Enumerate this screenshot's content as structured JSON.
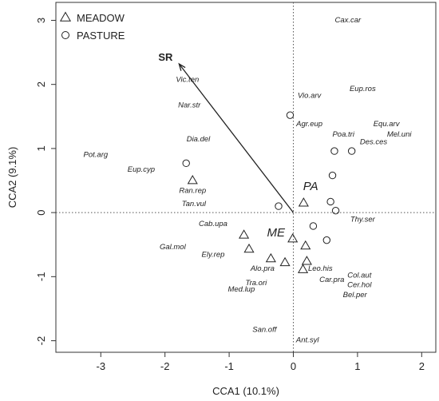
{
  "chart_data": {
    "type": "scatter",
    "title": "",
    "xlabel": "CCA1 (10.1%)",
    "ylabel": "CCA2 (9.1%)",
    "xlim": [
      -3.7,
      2.22
    ],
    "ylim": [
      -2.18,
      3.28
    ],
    "x_ticks": [
      -3,
      -2,
      -1,
      0,
      1,
      2
    ],
    "y_ticks": [
      -2,
      -1,
      0,
      1,
      2,
      3
    ],
    "legend": {
      "position": "top-left",
      "entries": [
        {
          "label": "MEADOW",
          "marker": "triangle"
        },
        {
          "label": "PASTURE",
          "marker": "circle"
        }
      ]
    },
    "series": [
      {
        "name": "MEADOW",
        "marker": "triangle",
        "points": [
          {
            "x": -1.57,
            "y": 0.5
          },
          {
            "x": -0.77,
            "y": -0.35
          },
          {
            "x": -0.69,
            "y": -0.57
          },
          {
            "x": -0.35,
            "y": -0.72
          },
          {
            "x": -0.13,
            "y": -0.78
          },
          {
            "x": -0.01,
            "y": -0.41
          },
          {
            "x": 0.19,
            "y": -0.52
          },
          {
            "x": 0.21,
            "y": -0.76
          },
          {
            "x": 0.15,
            "y": -0.89
          },
          {
            "x": 0.16,
            "y": 0.15
          }
        ]
      },
      {
        "name": "PASTURE",
        "marker": "circle",
        "points": [
          {
            "x": -1.67,
            "y": 0.77
          },
          {
            "x": -0.23,
            "y": 0.1
          },
          {
            "x": -0.05,
            "y": 1.52
          },
          {
            "x": 0.31,
            "y": -0.21
          },
          {
            "x": 0.52,
            "y": -0.43
          },
          {
            "x": 0.58,
            "y": 0.17
          },
          {
            "x": 0.61,
            "y": 0.58
          },
          {
            "x": 0.64,
            "y": 0.96
          },
          {
            "x": 0.66,
            "y": 0.03
          },
          {
            "x": 0.91,
            "y": 0.96
          }
        ]
      }
    ],
    "species_labels": [
      {
        "text": "Cax.car",
        "x": 0.85,
        "y": 3.0
      },
      {
        "text": "Vic.ten",
        "x": -1.65,
        "y": 2.07
      },
      {
        "text": "Vio.arv",
        "x": 0.25,
        "y": 1.82
      },
      {
        "text": "Eup.ros",
        "x": 1.08,
        "y": 1.93
      },
      {
        "text": "Nar.str",
        "x": -1.62,
        "y": 1.67
      },
      {
        "text": "Agr.eup",
        "x": 0.25,
        "y": 1.38
      },
      {
        "text": "Equ.arv",
        "x": 1.45,
        "y": 1.38
      },
      {
        "text": "Dia.del",
        "x": -1.48,
        "y": 1.14
      },
      {
        "text": "Poa.tri",
        "x": 0.78,
        "y": 1.22
      },
      {
        "text": "Mel.uni",
        "x": 1.65,
        "y": 1.22
      },
      {
        "text": "Des.ces",
        "x": 1.25,
        "y": 1.1
      },
      {
        "text": "Pot.arg",
        "x": -3.08,
        "y": 0.9
      },
      {
        "text": "Eup.cyp",
        "x": -2.37,
        "y": 0.67
      },
      {
        "text": "Ran.rep",
        "x": -1.57,
        "y": 0.34
      },
      {
        "text": "Tan.vul",
        "x": -1.55,
        "y": 0.13
      },
      {
        "text": "Thy.ser",
        "x": 1.08,
        "y": -0.11
      },
      {
        "text": "Cab.upa",
        "x": -1.25,
        "y": -0.18
      },
      {
        "text": "Gal.mol",
        "x": -1.88,
        "y": -0.54
      },
      {
        "text": "Ely.rep",
        "x": -1.25,
        "y": -0.66
      },
      {
        "text": "Alo.pra",
        "x": -0.48,
        "y": -0.88
      },
      {
        "text": "Leo.his",
        "x": 0.42,
        "y": -0.88
      },
      {
        "text": "Col.aut",
        "x": 1.03,
        "y": -0.98
      },
      {
        "text": "Car.pra",
        "x": 0.6,
        "y": -1.05
      },
      {
        "text": "Cer.hol",
        "x": 1.03,
        "y": -1.13
      },
      {
        "text": "Tra.ori",
        "x": -0.58,
        "y": -1.1
      },
      {
        "text": "Med.lup",
        "x": -0.81,
        "y": -1.2
      },
      {
        "text": "Bel.per",
        "x": 0.96,
        "y": -1.29
      },
      {
        "text": "San.off",
        "x": -0.45,
        "y": -1.83
      },
      {
        "text": "Ant.syl",
        "x": 0.22,
        "y": -1.99
      }
    ],
    "centroids": [
      {
        "text": "PA",
        "x": 0.27,
        "y": 0.4
      },
      {
        "text": "ME",
        "x": -0.27,
        "y": -0.32
      }
    ],
    "env_vectors": [
      {
        "label": "SR",
        "x0": 0,
        "y0": 0,
        "x1": -1.78,
        "y1": 2.32
      }
    ]
  }
}
